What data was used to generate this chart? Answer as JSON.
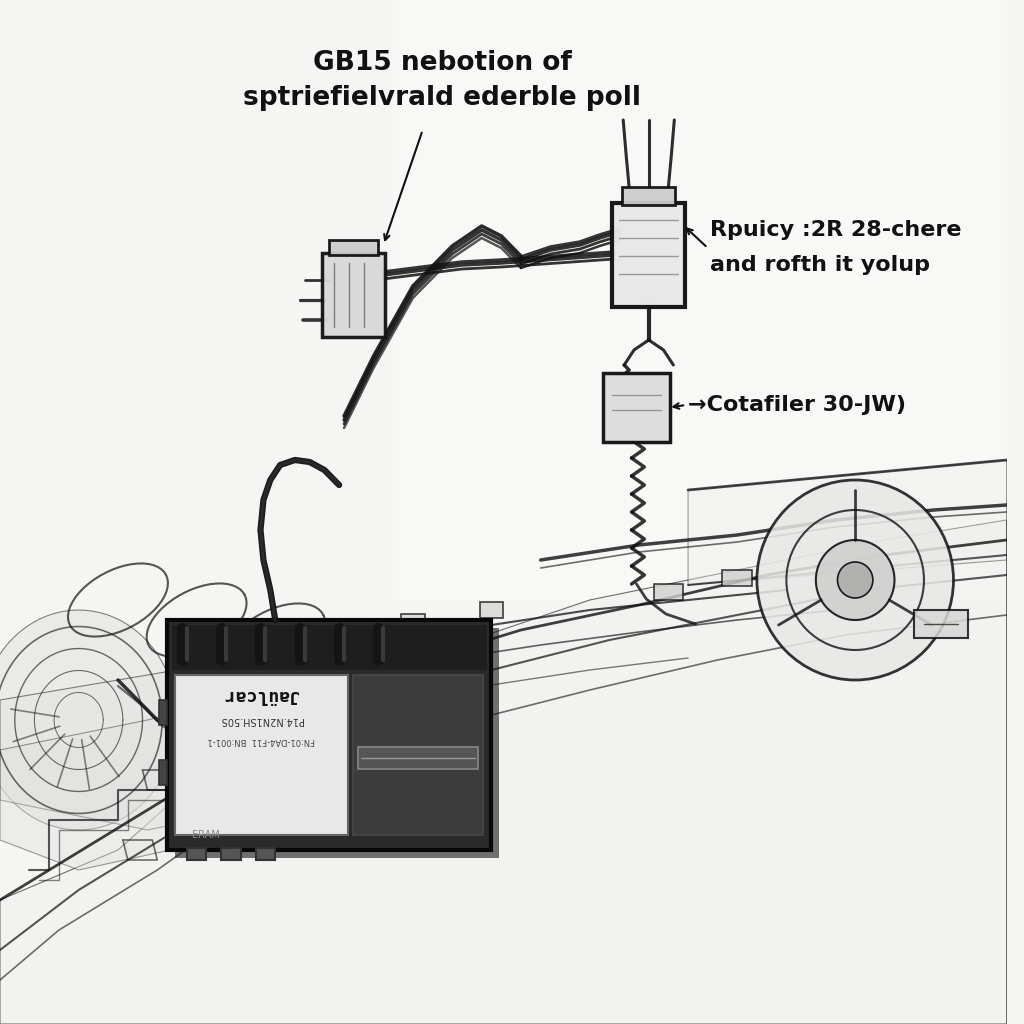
{
  "background_color": "#f5f5f3",
  "annotation1_line1": "GB15 nebotion of",
  "annotation1_line2": "sptriefielvrald ederble poll",
  "annotation2_line1": "Rpuicy :2R 28-chere",
  "annotation2_line2": "and rofth it yolup",
  "annotation3_text": "→Cotafiler 30-JW)",
  "text_color": "#111111",
  "font_size_large": 19,
  "font_size_medium": 16,
  "lc": "#111111",
  "lc_light": "#555555",
  "lc_vlight": "#999999"
}
